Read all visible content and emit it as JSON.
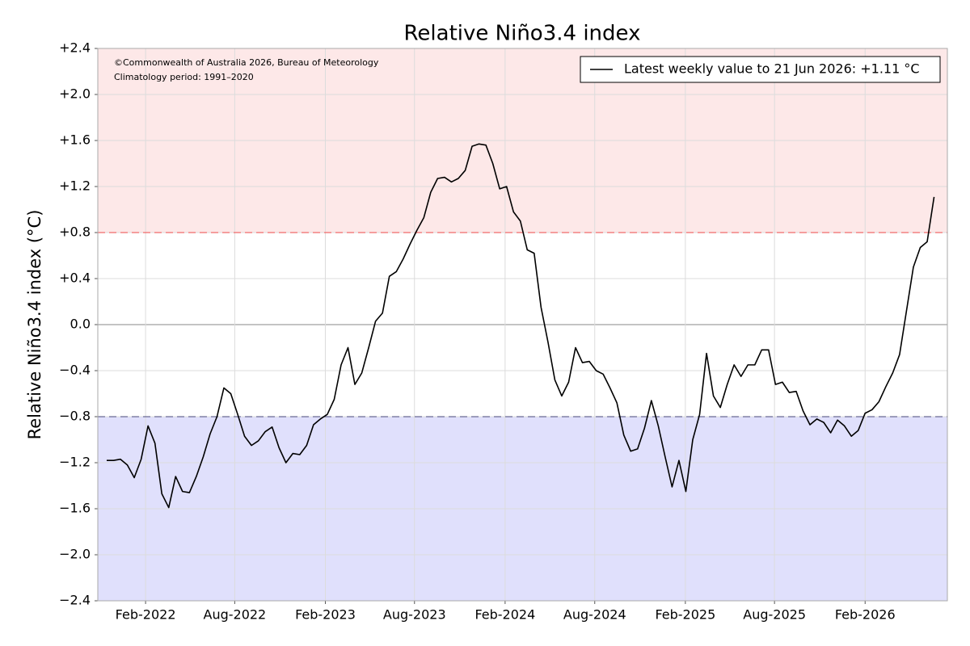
{
  "chart_data": {
    "type": "line",
    "title": "Relative Niño3.4 index",
    "ylabel": "Relative Niño3.4 index (°C)",
    "annotations": [
      "©Commonwealth of Australia 2026, Bureau of Meteorology",
      "Climatology period: 1991–2020"
    ],
    "legend_position": "upper right",
    "grid": true,
    "xlim": [
      "2021-10-27",
      "2026-07-18"
    ],
    "xticks": [
      {
        "value": "2022-02-01",
        "label": "Feb-2022"
      },
      {
        "value": "2022-08-01",
        "label": "Aug-2022"
      },
      {
        "value": "2023-02-01",
        "label": "Feb-2023"
      },
      {
        "value": "2023-08-01",
        "label": "Aug-2023"
      },
      {
        "value": "2024-02-01",
        "label": "Feb-2024"
      },
      {
        "value": "2024-08-01",
        "label": "Aug-2024"
      },
      {
        "value": "2025-02-01",
        "label": "Feb-2025"
      },
      {
        "value": "2025-08-01",
        "label": "Aug-2025"
      },
      {
        "value": "2026-02-01",
        "label": "Feb-2026"
      }
    ],
    "ylim": [
      -2.4,
      2.4
    ],
    "yticks": [
      {
        "value": 2.4,
        "label": "+2.4"
      },
      {
        "value": 2.0,
        "label": "+2.0"
      },
      {
        "value": 1.6,
        "label": "+1.6"
      },
      {
        "value": 1.2,
        "label": "+1.2"
      },
      {
        "value": 0.8,
        "label": "+0.8"
      },
      {
        "value": 0.4,
        "label": "+0.4"
      },
      {
        "value": 0,
        "label": "0.0"
      },
      {
        "value": -0.4,
        "label": "−0.4"
      },
      {
        "value": -0.8,
        "label": "−0.8"
      },
      {
        "value": -1.2,
        "label": "−1.2"
      },
      {
        "value": -1.6,
        "label": "−1.6"
      },
      {
        "value": -2.0,
        "label": "−2.0"
      },
      {
        "value": -2.4,
        "label": "−2.4"
      }
    ],
    "thresholds": [
      {
        "value": 0.8,
        "color": "#f06a6a",
        "fill": "#fde8e8"
      },
      {
        "value": -0.8,
        "color": "#6a6a94",
        "fill": "#e0e0fc"
      }
    ],
    "x": [
      "2021-11-14",
      "2021-11-28",
      "2021-12-12",
      "2021-12-26",
      "2022-01-09",
      "2022-01-23",
      "2022-02-06",
      "2022-02-20",
      "2022-03-06",
      "2022-03-20",
      "2022-04-03",
      "2022-04-17",
      "2022-05-01",
      "2022-05-15",
      "2022-05-29",
      "2022-06-12",
      "2022-06-26",
      "2022-07-10",
      "2022-07-24",
      "2022-08-07",
      "2022-08-21",
      "2022-09-04",
      "2022-09-18",
      "2022-10-02",
      "2022-10-16",
      "2022-10-30",
      "2022-11-13",
      "2022-11-27",
      "2022-12-11",
      "2022-12-25",
      "2023-01-08",
      "2023-01-22",
      "2023-02-05",
      "2023-02-19",
      "2023-03-05",
      "2023-03-19",
      "2023-04-02",
      "2023-04-16",
      "2023-04-30",
      "2023-05-14",
      "2023-05-28",
      "2023-06-11",
      "2023-06-25",
      "2023-07-09",
      "2023-07-23",
      "2023-08-06",
      "2023-08-20",
      "2023-09-03",
      "2023-09-17",
      "2023-10-01",
      "2023-10-15",
      "2023-10-29",
      "2023-11-12",
      "2023-11-26",
      "2023-12-10",
      "2023-12-24",
      "2024-01-07",
      "2024-01-21",
      "2024-02-04",
      "2024-02-18",
      "2024-03-03",
      "2024-03-17",
      "2024-03-31",
      "2024-04-14",
      "2024-04-28",
      "2024-05-12",
      "2024-05-26",
      "2024-06-09",
      "2024-06-23",
      "2024-07-07",
      "2024-07-21",
      "2024-08-04",
      "2024-08-18",
      "2024-09-01",
      "2024-09-15",
      "2024-09-29",
      "2024-10-13",
      "2024-10-27",
      "2024-11-10",
      "2024-11-24",
      "2024-12-08",
      "2024-12-22",
      "2025-01-05",
      "2025-01-19",
      "2025-02-02",
      "2025-02-16",
      "2025-03-02",
      "2025-03-16",
      "2025-03-30",
      "2025-04-13",
      "2025-04-27",
      "2025-05-11",
      "2025-05-25",
      "2025-06-08",
      "2025-06-22",
      "2025-07-06",
      "2025-07-20",
      "2025-08-03",
      "2025-08-17",
      "2025-08-31",
      "2025-09-14",
      "2025-09-28",
      "2025-10-12",
      "2025-10-26",
      "2025-11-09",
      "2025-11-23",
      "2025-12-07",
      "2025-12-21",
      "2026-01-04",
      "2026-01-18",
      "2026-02-01",
      "2026-02-15",
      "2026-03-01",
      "2026-03-15",
      "2026-03-29",
      "2026-04-12",
      "2026-04-26",
      "2026-05-10",
      "2026-05-24",
      "2026-06-07",
      "2026-06-21"
    ],
    "series": [
      {
        "name": "Latest weekly value to 21 Jun 2026: +1.11 °C",
        "color": "#000000",
        "values": [
          -1.18,
          -1.18,
          -1.17,
          -1.22,
          -1.33,
          -1.17,
          -0.88,
          -1.03,
          -1.47,
          -1.59,
          -1.32,
          -1.45,
          -1.46,
          -1.32,
          -1.15,
          -0.95,
          -0.8,
          -0.55,
          -0.6,
          -0.78,
          -0.97,
          -1.05,
          -1.01,
          -0.93,
          -0.89,
          -1.07,
          -1.2,
          -1.12,
          -1.13,
          -1.05,
          -0.87,
          -0.82,
          -0.78,
          -0.65,
          -0.35,
          -0.2,
          -0.52,
          -0.42,
          -0.2,
          0.03,
          0.1,
          0.42,
          0.46,
          0.57,
          0.7,
          0.82,
          0.93,
          1.15,
          1.27,
          1.28,
          1.24,
          1.27,
          1.34,
          1.55,
          1.57,
          1.56,
          1.4,
          1.18,
          1.2,
          0.98,
          0.9,
          0.65,
          0.62,
          0.15,
          -0.15,
          -0.48,
          -0.62,
          -0.5,
          -0.2,
          -0.33,
          -0.32,
          -0.4,
          -0.43,
          -0.55,
          -0.68,
          -0.96,
          -1.1,
          -1.08,
          -0.9,
          -0.66,
          -0.88,
          -1.15,
          -1.41,
          -1.18,
          -1.45,
          -1.0,
          -0.78,
          -0.25,
          -0.62,
          -0.72,
          -0.52,
          -0.35,
          -0.45,
          -0.35,
          -0.35,
          -0.22,
          -0.22,
          -0.52,
          -0.5,
          -0.59,
          -0.58,
          -0.75,
          -0.87,
          -0.82,
          -0.85,
          -0.94,
          -0.83,
          -0.88,
          -0.97,
          -0.92,
          -0.77,
          -0.74,
          -0.67,
          -0.54,
          -0.42,
          -0.26,
          0.12,
          0.5,
          0.67,
          0.72,
          1.11
        ]
      }
    ]
  }
}
